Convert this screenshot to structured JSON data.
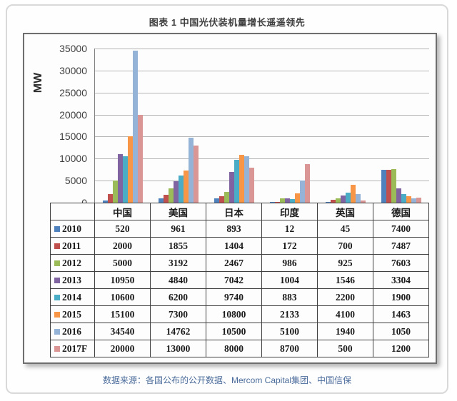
{
  "page": {
    "title": "图表 1 中国光伏装机量增长遥遥领先",
    "source": "数据来源：各国公布的公开数据、Mercom Capital集团、中国信保"
  },
  "chart_data": {
    "type": "bar",
    "title": "图表 1 中国光伏装机量增长遥遥领先",
    "ylabel": "MW",
    "xlabel": "",
    "ylim": [
      0,
      35000
    ],
    "yticks": [
      0,
      5000,
      10000,
      15000,
      20000,
      25000,
      30000,
      35000
    ],
    "grid": true,
    "legend_position": "data-table-left-column",
    "categories": [
      "中国",
      "美国",
      "日本",
      "印度",
      "英国",
      "德国"
    ],
    "series": [
      {
        "name": "2010",
        "color": "#4F81BD",
        "values": [
          520,
          961,
          893,
          12,
          45,
          7400
        ]
      },
      {
        "name": "2011",
        "color": "#C0504D",
        "values": [
          2000,
          1855,
          1404,
          172,
          700,
          7487
        ]
      },
      {
        "name": "2012",
        "color": "#9BBB59",
        "values": [
          5000,
          3192,
          2467,
          986,
          925,
          7603
        ]
      },
      {
        "name": "2013",
        "color": "#8064A2",
        "values": [
          10950,
          4840,
          7042,
          1004,
          1546,
          3304
        ]
      },
      {
        "name": "2014",
        "color": "#4BACC6",
        "values": [
          10600,
          6200,
          9740,
          883,
          2200,
          1900
        ]
      },
      {
        "name": "2015",
        "color": "#F79646",
        "values": [
          15100,
          7300,
          10800,
          2133,
          4100,
          1463
        ]
      },
      {
        "name": "2016",
        "color": "#95B3D7",
        "values": [
          34540,
          14762,
          10500,
          5100,
          1940,
          1050
        ]
      },
      {
        "name": "2017F",
        "color": "#D99694",
        "values": [
          20000,
          13000,
          8000,
          8700,
          500,
          1200
        ]
      }
    ]
  }
}
